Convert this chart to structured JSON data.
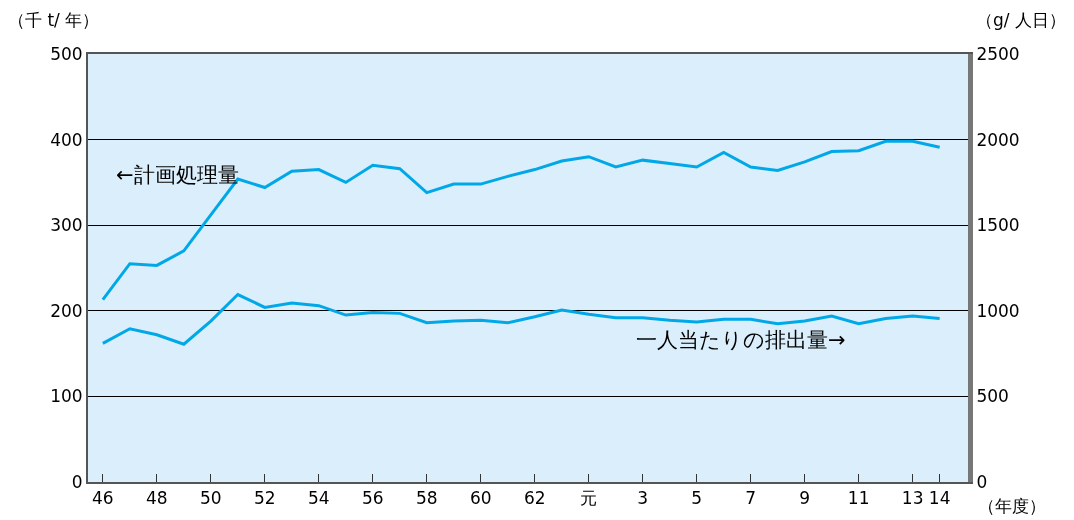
{
  "chart_data": {
    "type": "line",
    "ylabel": "（千 t/ 年）",
    "y2label": "（g/ 人日）",
    "xlabel": "（年度）",
    "categories": [
      "46",
      null,
      "48",
      null,
      "50",
      null,
      "52",
      null,
      "54",
      null,
      "56",
      null,
      "58",
      null,
      "60",
      null,
      "62",
      null,
      "元",
      null,
      "3",
      null,
      "5",
      null,
      "7",
      null,
      "9",
      null,
      "11",
      null,
      "13",
      "14"
    ],
    "series": [
      {
        "name": "←計画処理量",
        "color": "#00a8e8",
        "values": [
          213,
          255,
          253,
          270,
          312,
          354,
          344,
          363,
          365,
          350,
          370,
          366,
          338,
          348,
          348,
          357,
          365,
          375,
          380,
          368,
          376,
          372,
          368,
          385,
          368,
          364,
          374,
          386,
          387,
          398,
          398,
          391
        ]
      },
      {
        "name": "一人当たりの排出量→",
        "color": "#00a8e8",
        "axis": "y2",
        "values": [
          810,
          895,
          860,
          805,
          940,
          1095,
          1020,
          1045,
          1030,
          975,
          990,
          985,
          930,
          940,
          945,
          930,
          965,
          1005,
          980,
          960,
          960,
          945,
          935,
          950,
          950,
          925,
          940,
          970,
          925,
          955,
          970,
          955
        ]
      }
    ],
    "ylim": [
      0,
      500
    ],
    "yticks": [
      0,
      100,
      200,
      300,
      400,
      500
    ],
    "y2lim": [
      0,
      2500
    ],
    "y2ticks": [
      0,
      500,
      1000,
      1500,
      2000,
      2500
    ],
    "grid": "y",
    "legend": false,
    "line_style": "solid",
    "marker": "none"
  }
}
